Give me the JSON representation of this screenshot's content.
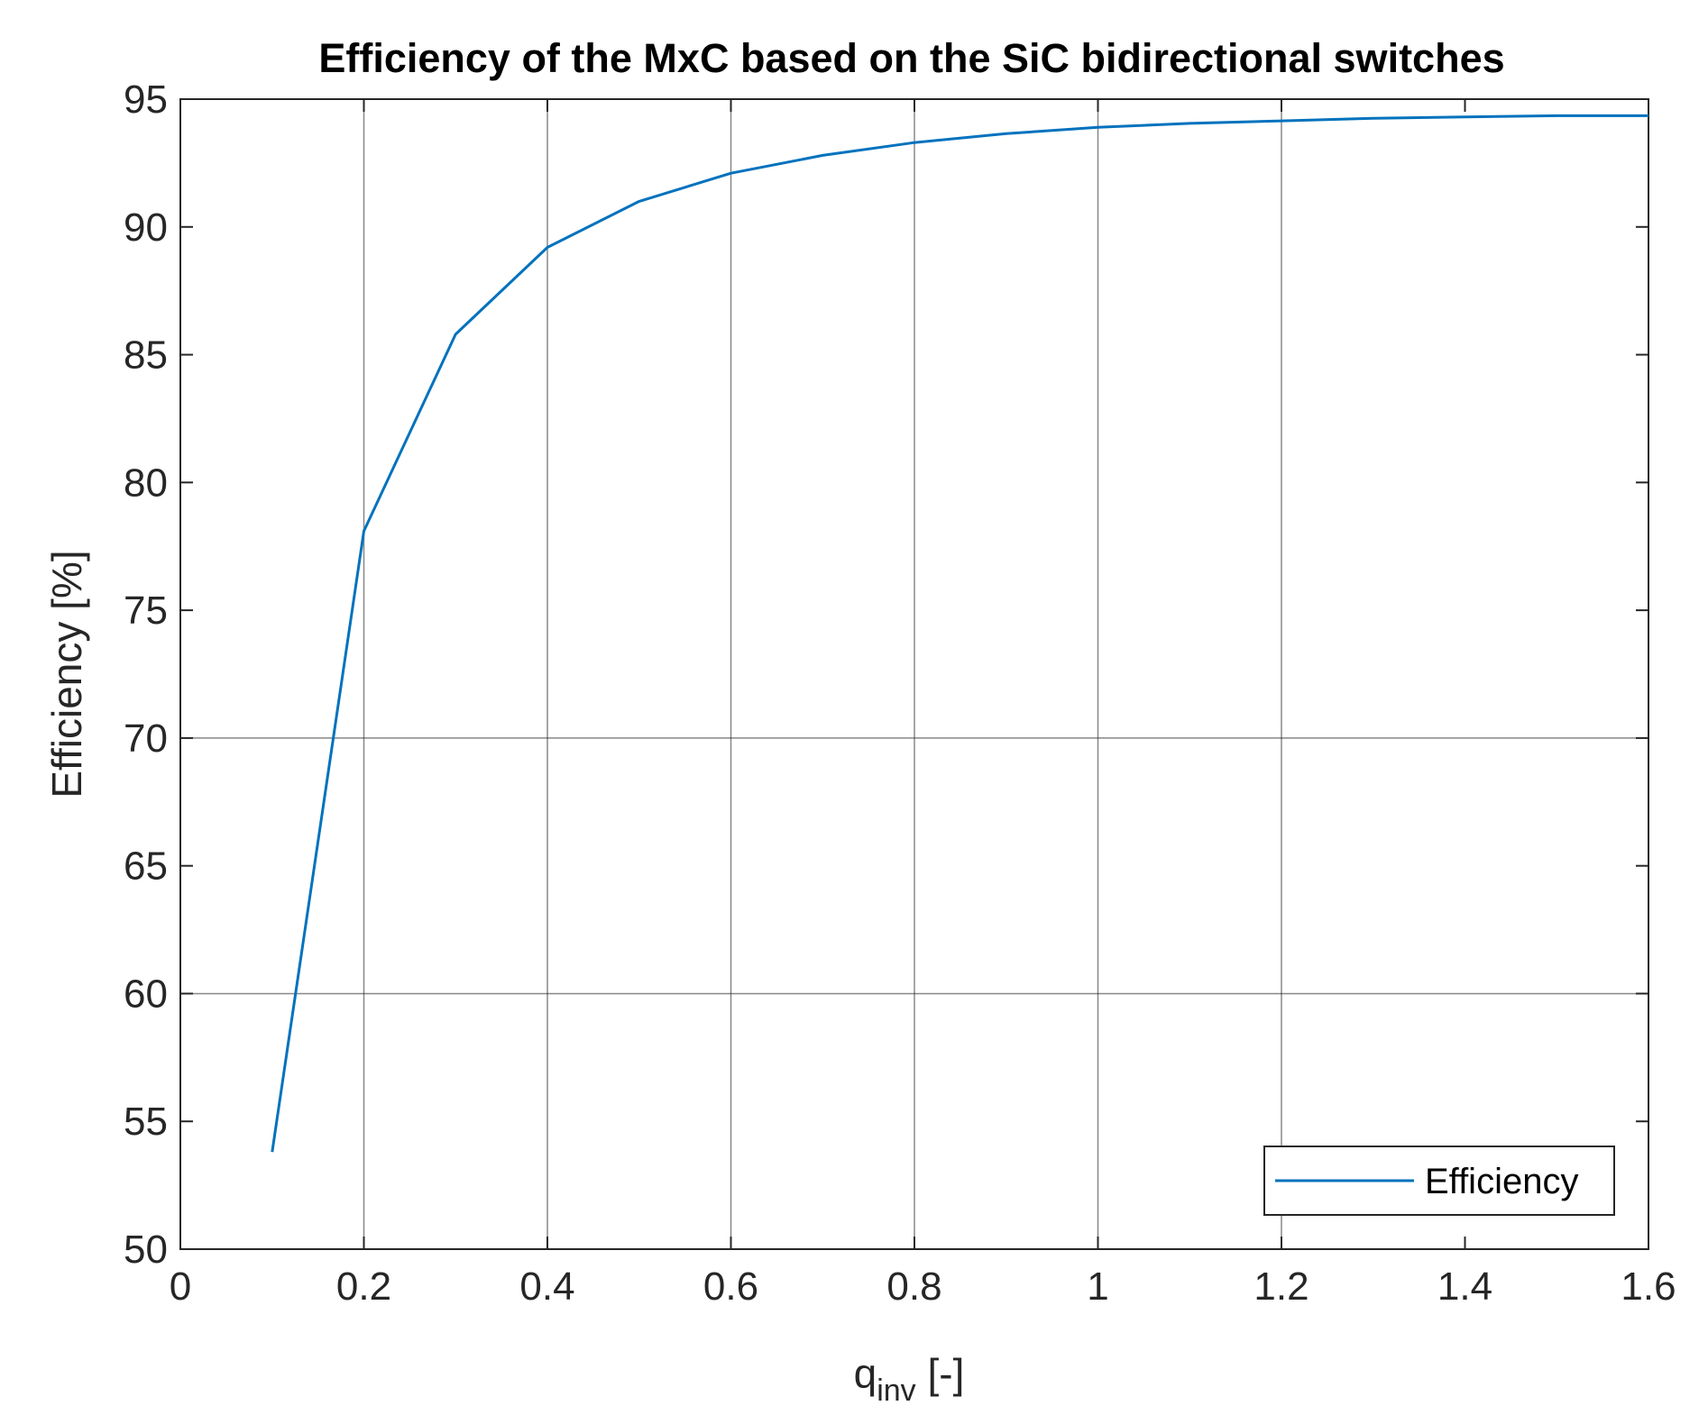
{
  "chart_data": {
    "type": "line",
    "title": "Efficiency of the MxC based on the SiC bidirectional switches",
    "xlabel_main": "q",
    "xlabel_sub": "inv",
    "xlabel_suffix": " [-]",
    "ylabel": "Efficiency [%]",
    "xlim": [
      0,
      1.6
    ],
    "ylim": [
      50,
      95
    ],
    "xticks": [
      0,
      0.2,
      0.4,
      0.6,
      0.8,
      1,
      1.2,
      1.4,
      1.6
    ],
    "yticks": [
      50,
      55,
      60,
      65,
      70,
      75,
      80,
      85,
      90,
      95
    ],
    "xtick_labels": [
      "0",
      "0.2",
      "0.4",
      "0.6",
      "0.8",
      "1",
      "1.2",
      "1.4",
      "1.6"
    ],
    "ytick_labels": [
      "50",
      "55",
      "60",
      "65",
      "70",
      "75",
      "80",
      "85",
      "90",
      "95"
    ],
    "grid_x": [
      0.2,
      0.4,
      0.6,
      0.8,
      1,
      1.2
    ],
    "grid_y": [
      60,
      70
    ],
    "legend_position": "bottom-right",
    "series": [
      {
        "name": "Efficiency",
        "color": "#0072BD",
        "x": [
          0.1,
          0.2,
          0.3,
          0.4,
          0.5,
          0.6,
          0.7,
          0.8,
          0.9,
          1.0,
          1.1,
          1.2,
          1.3,
          1.4,
          1.5,
          1.6
        ],
        "y": [
          53.8,
          78.1,
          85.8,
          89.2,
          91.0,
          92.1,
          92.8,
          93.3,
          93.65,
          93.9,
          94.05,
          94.15,
          94.25,
          94.3,
          94.35,
          94.35
        ]
      }
    ]
  }
}
